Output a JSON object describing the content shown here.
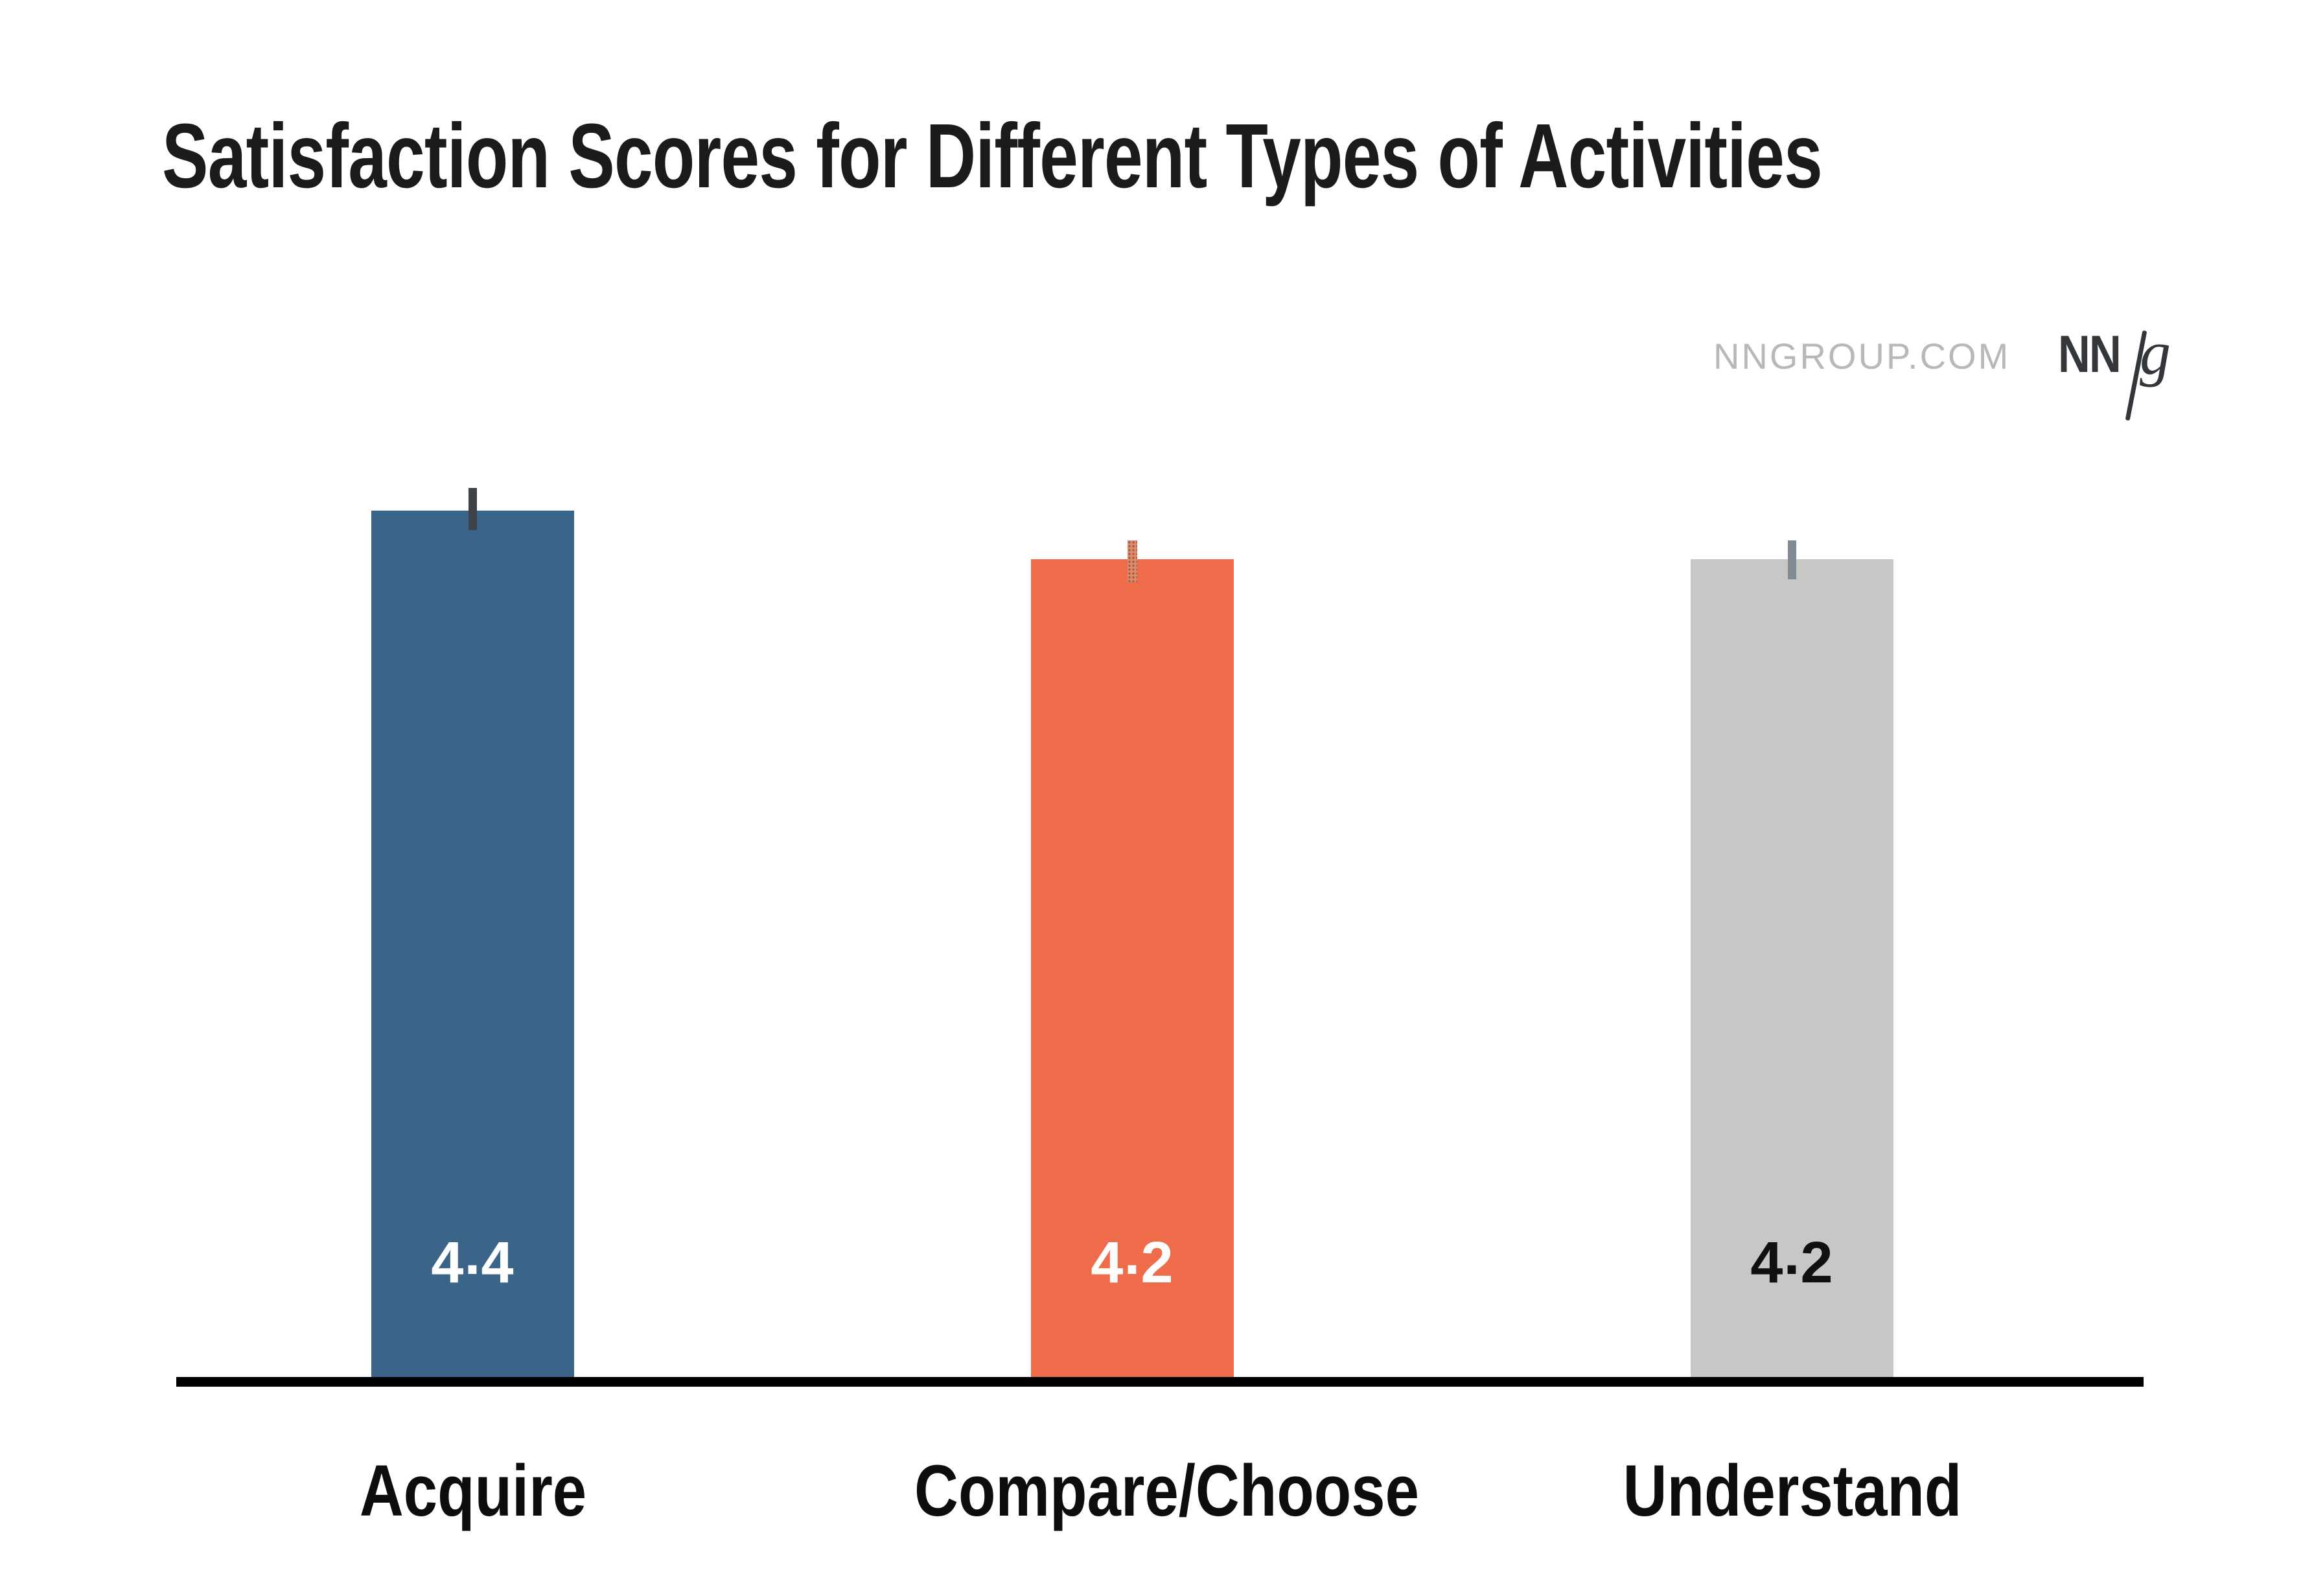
{
  "page": {
    "background_color": "#FFFFFF"
  },
  "branding": {
    "site_text": "NNGROUP.COM",
    "site_text_color": "#B8B8BA",
    "logo": {
      "nn": "NN",
      "slash": "/",
      "g": "g",
      "color": "#33363B"
    }
  },
  "chart_data": {
    "type": "bar",
    "title": "Satisfaction Scores for Different Types of Activities",
    "title_color": "#1B1B1D",
    "categories": [
      "Acquire",
      "Compare/Choose",
      "Understand"
    ],
    "values": [
      4.4,
      4.2,
      4.2
    ],
    "value_labels": [
      "4.4",
      "4.2",
      "4.2"
    ],
    "bar_colors": [
      "#3A6588",
      "#EE6C49",
      "#C7C7C6"
    ],
    "value_label_colors": [
      "#FFFFFF",
      "#FFFFFF",
      "#101012"
    ],
    "error_bars": {
      "shown": true,
      "tick_colors": [
        "#3E434A",
        "#E8875F",
        "#7F8A94"
      ],
      "stippled": [
        false,
        true,
        false
      ]
    },
    "axes": {
      "baseline_color": "#010101",
      "gridlines_shown": false,
      "y_tick_labels_shown": false,
      "xlabel": "",
      "ylabel": ""
    },
    "legend_shown": false
  }
}
